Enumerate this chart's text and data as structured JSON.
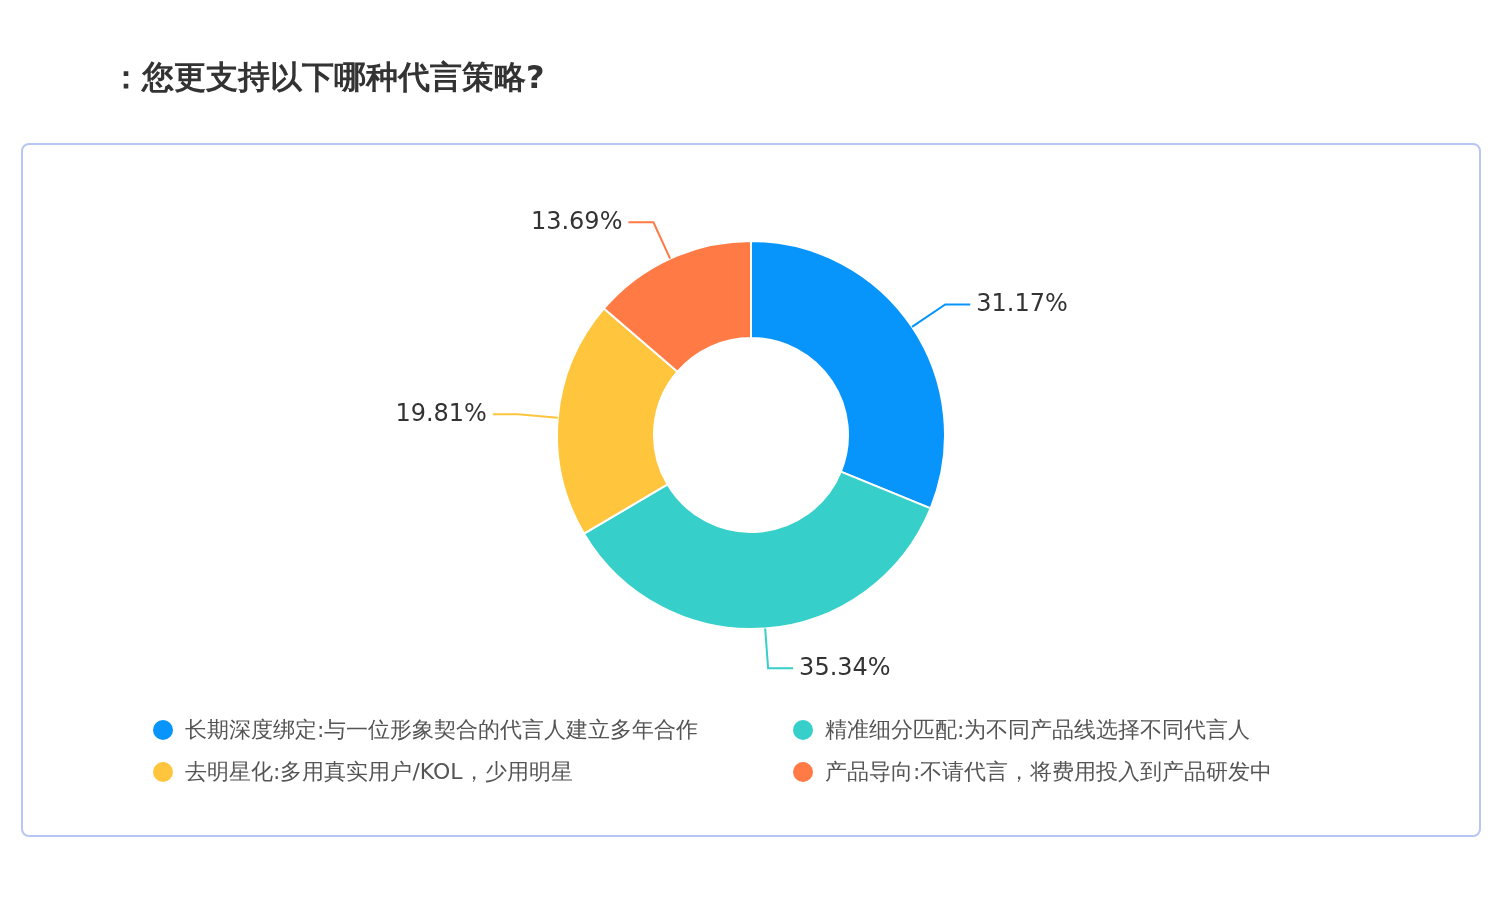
{
  "chart_data": {
    "type": "donut",
    "title": "：您更支持以下哪种代言策略?",
    "categories": [
      "长期深度绑定:与一位形象契合的代言人建立多年合作",
      "精准细分匹配:为不同产品线选择不同代言人",
      "去明星化:多用真实用户/KOL，少用明星",
      "产品导向:不请代言，将费用投入到产品研发中"
    ],
    "values": [
      31.17,
      35.34,
      19.81,
      13.69
    ],
    "colors": [
      "#0895fb",
      "#36cfc9",
      "#ffc53d",
      "#ff7a45"
    ],
    "value_labels": [
      "31.17%",
      "35.34%",
      "19.81%",
      "13.69%"
    ],
    "legend": "bottom"
  }
}
